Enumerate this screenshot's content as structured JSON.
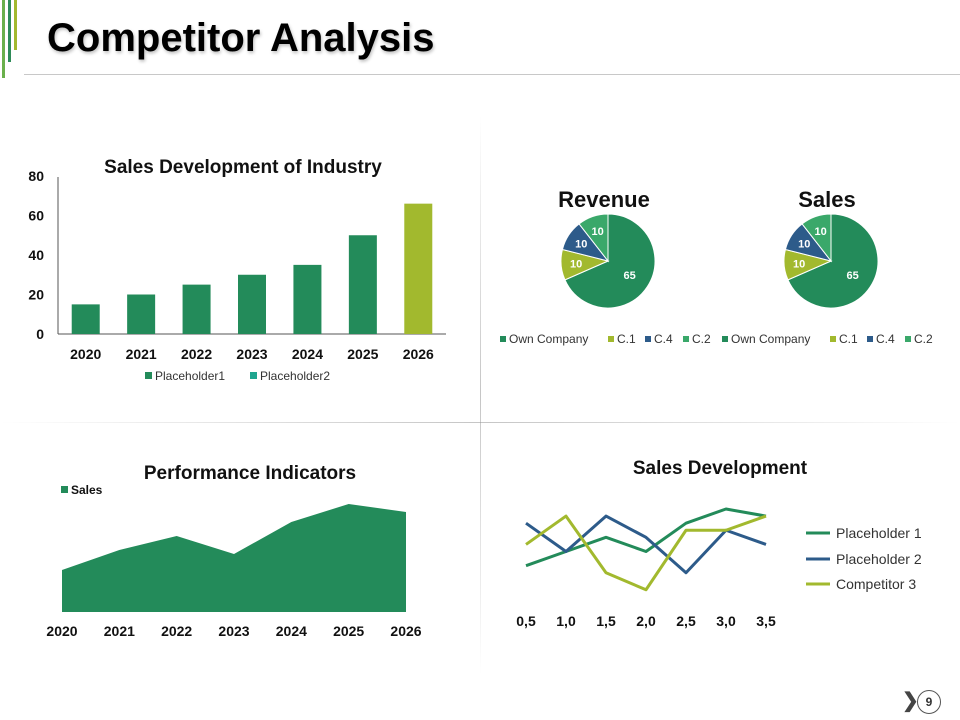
{
  "slide": {
    "title": "Competitor Analysis",
    "page_number": "9",
    "next_glyph": "❯"
  },
  "colors": {
    "green": "#238b5a",
    "lime": "#a2b92e",
    "navy": "#2d5b8a",
    "mint": "#3aa86a",
    "teal": "#1fa58f",
    "accent1": "#6ab04c",
    "accent2": "#2e8b57"
  },
  "chart_data": [
    {
      "id": "industry",
      "type": "bar",
      "title": "Sales Development of Industry",
      "categories": [
        "2020",
        "2021",
        "2022",
        "2023",
        "2024",
        "2025",
        "2026"
      ],
      "series": [
        {
          "name": "Placeholder1",
          "values": [
            15,
            20,
            25,
            30,
            35,
            50,
            0
          ]
        },
        {
          "name": "Placeholder2",
          "values": [
            0,
            0,
            0,
            0,
            0,
            0,
            66
          ]
        }
      ],
      "ylim": [
        0,
        80
      ],
      "yticks": [
        "0",
        "20",
        "40",
        "60",
        "80"
      ],
      "legend": [
        "Placeholder1",
        "Placeholder2"
      ]
    },
    {
      "id": "revenue",
      "type": "pie",
      "title": "Revenue",
      "labels": [
        "Own Company",
        "C.1",
        "C.4",
        "C.2"
      ],
      "values": [
        65,
        10,
        10,
        10
      ],
      "value_labels": [
        "65",
        "10",
        "10",
        "10"
      ]
    },
    {
      "id": "sales_pie",
      "type": "pie",
      "title": "Sales",
      "labels": [
        "Own Company",
        "C.1",
        "C.4",
        "C.2"
      ],
      "values": [
        65,
        10,
        10,
        10
      ],
      "value_labels": [
        "65",
        "10",
        "10",
        "10"
      ]
    },
    {
      "id": "performance",
      "type": "area",
      "title": "Performance Indicators",
      "categories": [
        "2020",
        "2021",
        "2022",
        "2023",
        "2024",
        "2025",
        "2026"
      ],
      "series": [
        {
          "name": "Sales",
          "values": [
            21,
            31,
            38,
            29,
            45,
            54,
            50
          ]
        }
      ],
      "ylim": [
        0,
        60
      ]
    },
    {
      "id": "sales_dev",
      "type": "line",
      "title": "Sales Development",
      "x": [
        "0,5",
        "1,0",
        "1,5",
        "2,0",
        "2,5",
        "3,0",
        "3,5"
      ],
      "series": [
        {
          "name": "Placeholder 1",
          "values": [
            2,
            3,
            4,
            3,
            5,
            6,
            5.5
          ]
        },
        {
          "name": "Placeholder 2",
          "values": [
            5,
            3,
            5.5,
            4,
            1.5,
            4.5,
            3.5
          ]
        },
        {
          "name": "Competitor 3",
          "values": [
            3.5,
            5.5,
            1.5,
            0.3,
            4.5,
            4.5,
            5.5
          ]
        }
      ],
      "ylim": [
        0,
        6
      ]
    }
  ]
}
